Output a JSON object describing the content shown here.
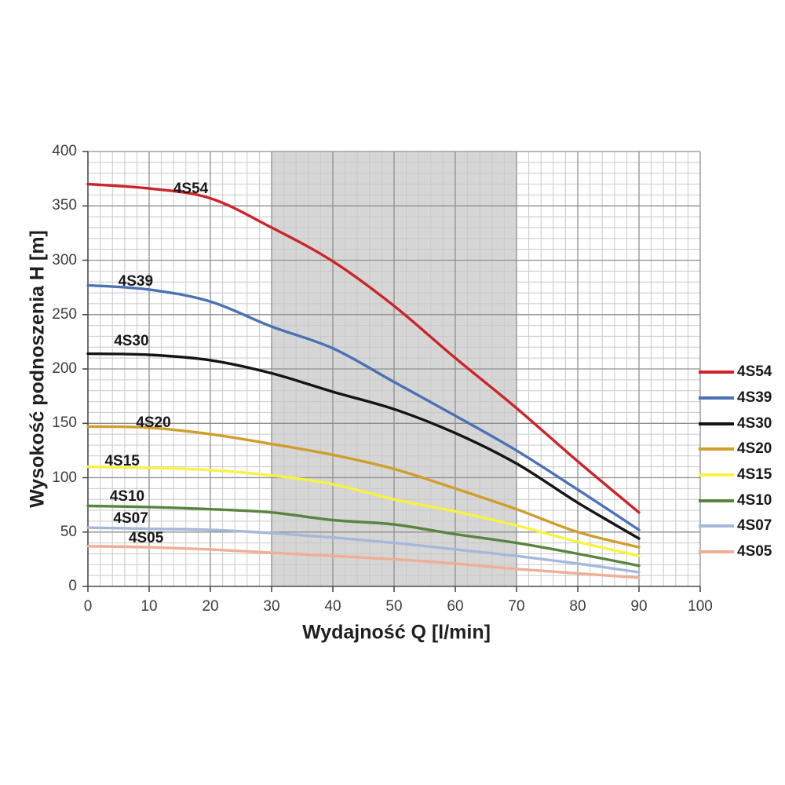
{
  "chart_data": {
    "type": "line",
    "title": "",
    "xlabel": "Wydajność Q [l/min]",
    "ylabel": "Wysokość podnoszenia H [m]",
    "xlim": [
      0,
      100
    ],
    "ylim": [
      0,
      400
    ],
    "x_ticks": [
      0,
      10,
      20,
      30,
      40,
      50,
      60,
      70,
      80,
      90,
      100
    ],
    "y_ticks": [
      0,
      50,
      100,
      150,
      200,
      250,
      300,
      350,
      400
    ],
    "x_minor_step": 2,
    "y_minor_step": 10,
    "grid": "on",
    "legend_position": "right",
    "shaded_region": {
      "x_from": 30,
      "x_to": 70,
      "color": "#d6d6d6"
    },
    "style": {
      "minor_grid_color": "#c9c9c9",
      "major_grid_color": "#8f8f8f",
      "axis_color": "#4a4a4a",
      "text_color": "#3c3c3c"
    },
    "x": [
      0,
      10,
      20,
      30,
      40,
      50,
      60,
      70,
      80,
      90
    ],
    "series": [
      {
        "name": "4S54",
        "color": "#cc2428",
        "values": [
          370,
          366,
          357,
          330,
          299,
          258,
          210,
          164,
          115,
          68
        ],
        "label_q": 16.8,
        "label_h": 365
      },
      {
        "name": "4S39",
        "color": "#4a72b4",
        "values": [
          277,
          273,
          262,
          239,
          219,
          188,
          157,
          125,
          89,
          52
        ],
        "label_q": 7.8,
        "label_h": 280
      },
      {
        "name": "4S30",
        "color": "#141414",
        "values": [
          214,
          213,
          208,
          196,
          179,
          163,
          141,
          113,
          77,
          44
        ],
        "label_q": 7.1,
        "label_h": 225
      },
      {
        "name": "4S20",
        "color": "#cf9e2b",
        "values": [
          147,
          146,
          140,
          131,
          121,
          108,
          90,
          71,
          50,
          36
        ],
        "label_q": 10.7,
        "label_h": 150
      },
      {
        "name": "4S15",
        "color": "#f8f243",
        "values": [
          110,
          109,
          107,
          102,
          94,
          80,
          69,
          56,
          41,
          28
        ],
        "label_q": 5.6,
        "label_h": 115
      },
      {
        "name": "4S10",
        "color": "#57853e",
        "values": [
          74,
          73,
          71,
          68,
          61,
          57,
          48,
          40,
          30,
          19
        ],
        "label_q": 6.4,
        "label_h": 82
      },
      {
        "name": "4S07",
        "color": "#a4b9da",
        "values": [
          54,
          53,
          52,
          49,
          45,
          40,
          34,
          28,
          21,
          13
        ],
        "label_q": 7.0,
        "label_h": 62
      },
      {
        "name": "4S05",
        "color": "#efae96",
        "values": [
          37,
          36,
          34,
          31,
          28,
          25,
          21,
          16,
          12,
          8
        ],
        "label_q": 9.5,
        "label_h": 44
      }
    ]
  }
}
